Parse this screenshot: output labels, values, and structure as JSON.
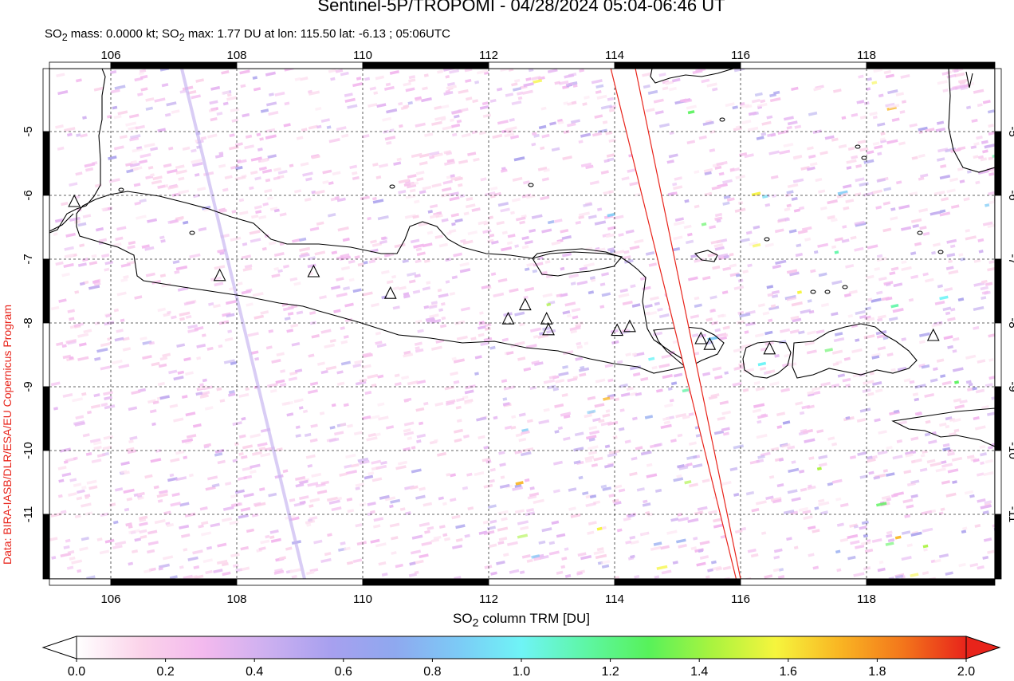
{
  "header": {
    "title": "Sentinel-5P/TROPOMI - 04/28/2024 05:04-06:46 UT",
    "subtitle_html": "SO<sub>2</sub> mass: 0.0000 kt; SO<sub>2</sub> max: 1.77 DU at lon: 115.50 lat: -6.13 ; 05:06UTC"
  },
  "credit": "Data: BIRA-IASB/DLR/ESA/EU Copernicus Program",
  "map": {
    "lon_range": [
      105.0,
      120.0
    ],
    "lat_range": [
      -12.0,
      -4.0
    ],
    "lon_ticks": [
      "106",
      "108",
      "110",
      "112",
      "114",
      "116",
      "118"
    ],
    "lat_ticks": [
      "-5",
      "-6",
      "-7",
      "-8",
      "-9",
      "-10",
      "-11"
    ],
    "grid": "dashed",
    "volcanoes": [
      {
        "lon": 105.42,
        "lat": -6.1
      },
      {
        "lon": 107.73,
        "lat": -7.26
      },
      {
        "lon": 109.22,
        "lat": -7.2
      },
      {
        "lon": 110.44,
        "lat": -7.54
      },
      {
        "lon": 112.31,
        "lat": -7.94
      },
      {
        "lon": 112.58,
        "lat": -7.72
      },
      {
        "lon": 112.92,
        "lat": -7.94
      },
      {
        "lon": 112.95,
        "lat": -8.11
      },
      {
        "lon": 114.04,
        "lat": -8.12
      },
      {
        "lon": 114.24,
        "lat": -8.06
      },
      {
        "lon": 115.37,
        "lat": -8.25
      },
      {
        "lon": 115.51,
        "lat": -8.34
      },
      {
        "lon": 116.46,
        "lat": -8.41
      },
      {
        "lon": 119.06,
        "lat": -8.2
      }
    ],
    "swath_gap": {
      "lon_top": [
        113.94,
        114.33
      ],
      "lon_bottom": [
        115.93,
        116.0
      ]
    },
    "colors": {
      "coast": "#000000",
      "swath_edge": "#e8241b",
      "grid": "#333333"
    }
  },
  "colorbar": {
    "label_html": "SO<sub>2</sub> column TRM [DU]",
    "ticks": [
      "0.0",
      "0.2",
      "0.4",
      "0.6",
      "0.8",
      "1.0",
      "1.2",
      "1.4",
      "1.6",
      "1.8",
      "2.0"
    ],
    "stops": [
      "#ffffff",
      "#fbd4ea",
      "#f3b9ee",
      "#cdb0f0",
      "#a7a0ef",
      "#8fa8ef",
      "#7ccaf6",
      "#6ff4f6",
      "#5ef6a6",
      "#57f25a",
      "#a9f33f",
      "#f6f53d",
      "#f9b623",
      "#f3761b",
      "#e8241b"
    ]
  }
}
